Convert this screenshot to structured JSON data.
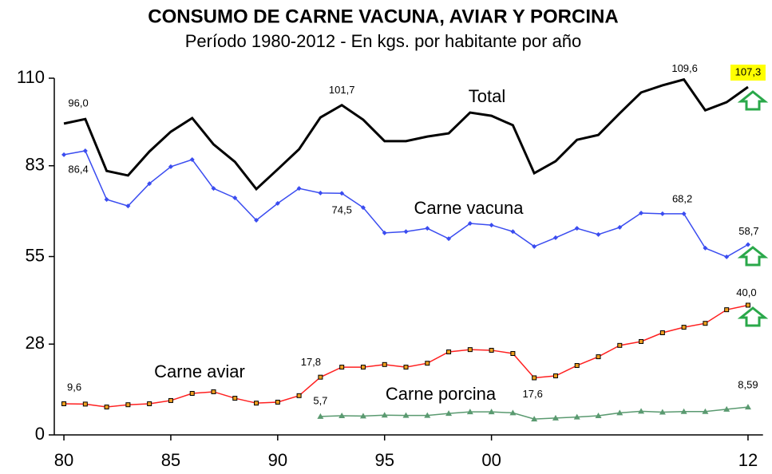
{
  "chart_data": {
    "type": "line",
    "title": "CONSUMO DE CARNE VACUNA, AVIAR Y PORCINA",
    "subtitle": "Período 1980-2012 - En kgs. por habitante por año",
    "x": [
      1980,
      1981,
      1982,
      1983,
      1984,
      1985,
      1986,
      1987,
      1988,
      1989,
      1990,
      1991,
      1992,
      1993,
      1994,
      1995,
      1996,
      1997,
      1998,
      1999,
      2000,
      2001,
      2002,
      2003,
      2004,
      2005,
      2006,
      2007,
      2008,
      2009,
      2010,
      2011,
      2012
    ],
    "xlim": [
      1979.55,
      2012.7
    ],
    "xticks": [
      {
        "value": 1980,
        "label": "80"
      },
      {
        "value": 1985,
        "label": "85"
      },
      {
        "value": 1990,
        "label": "90"
      },
      {
        "value": 1995,
        "label": "95"
      },
      {
        "value": 2000,
        "label": "00"
      },
      {
        "value": 2012,
        "label": "12"
      }
    ],
    "ylim": [
      0,
      110
    ],
    "yticks": [
      0,
      28,
      55,
      83,
      110
    ],
    "series": [
      {
        "name": "Total",
        "color": "#000000",
        "values": [
          96.0,
          97.4,
          81.4,
          80.0,
          87.4,
          93.5,
          97.7,
          89.6,
          84.2,
          75.8,
          81.9,
          88.1,
          97.9,
          101.7,
          97.2,
          90.6,
          90.6,
          92.0,
          93.0,
          99.4,
          98.4,
          95.5,
          80.7,
          84.4,
          91.0,
          92.5,
          99.2,
          105.6,
          107.8,
          109.6,
          100.1,
          102.6,
          107.3
        ],
        "value_labels": [
          "96,0",
          null,
          null,
          null,
          null,
          null,
          null,
          null,
          null,
          null,
          null,
          null,
          null,
          "101,7",
          null,
          null,
          null,
          null,
          null,
          null,
          null,
          null,
          null,
          null,
          null,
          null,
          null,
          null,
          null,
          "109,6",
          null,
          null,
          "107,3"
        ]
      },
      {
        "name": "Carne vacuna",
        "color": "#3a4cf0",
        "values": [
          86.4,
          87.6,
          72.6,
          70.6,
          77.5,
          82.7,
          84.9,
          76.0,
          73.1,
          66.2,
          71.4,
          76.0,
          74.6,
          74.5,
          70.1,
          62.3,
          62.7,
          63.7,
          60.5,
          65.2,
          64.7,
          62.7,
          58.1,
          60.8,
          63.7,
          61.8,
          64.0,
          68.4,
          68.2,
          68.2,
          57.6,
          54.9,
          58.7
        ],
        "value_labels": [
          "86,4",
          null,
          null,
          null,
          null,
          null,
          null,
          null,
          null,
          null,
          null,
          null,
          null,
          "74,5",
          null,
          null,
          null,
          null,
          null,
          null,
          null,
          null,
          null,
          null,
          null,
          null,
          null,
          null,
          null,
          "68,2",
          null,
          null,
          "58,7"
        ]
      },
      {
        "name": "Carne aviar",
        "color": "#ff2020",
        "values": [
          9.6,
          9.5,
          8.6,
          9.3,
          9.6,
          10.6,
          12.8,
          13.3,
          11.3,
          9.8,
          10.1,
          12.1,
          17.8,
          20.9,
          20.9,
          21.7,
          20.9,
          22.1,
          25.6,
          26.3,
          26.1,
          25.1,
          17.6,
          18.2,
          21.4,
          24.1,
          27.6,
          28.8,
          31.5,
          33.2,
          34.4,
          38.6,
          40.0
        ],
        "value_labels": [
          "9,6",
          null,
          null,
          null,
          null,
          null,
          null,
          null,
          null,
          null,
          null,
          null,
          "17,8",
          null,
          null,
          null,
          null,
          null,
          null,
          null,
          null,
          null,
          "17,6",
          null,
          null,
          null,
          null,
          null,
          null,
          null,
          null,
          null,
          "40,0"
        ]
      },
      {
        "name": "Carne porcina",
        "color": "#5a9a70",
        "values": [
          null,
          null,
          null,
          null,
          null,
          null,
          null,
          null,
          null,
          null,
          null,
          null,
          5.7,
          5.9,
          5.8,
          6.1,
          6.0,
          6.0,
          6.6,
          7.1,
          7.1,
          6.8,
          4.9,
          5.2,
          5.5,
          5.9,
          6.8,
          7.3,
          7.0,
          7.2,
          7.2,
          7.9,
          8.59
        ],
        "value_labels": [
          null,
          null,
          null,
          null,
          null,
          null,
          null,
          null,
          null,
          null,
          null,
          null,
          "5,7",
          null,
          null,
          null,
          null,
          null,
          null,
          null,
          null,
          null,
          null,
          null,
          null,
          null,
          null,
          null,
          null,
          null,
          null,
          null,
          "8,59"
        ]
      }
    ]
  }
}
